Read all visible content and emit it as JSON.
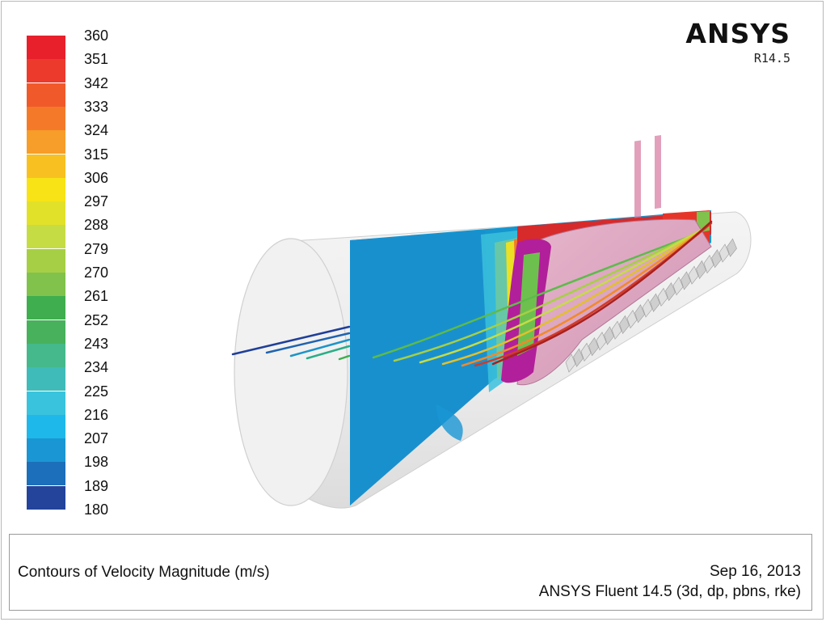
{
  "window": {
    "brand": "ANSYS",
    "version": "R14.5"
  },
  "legend": {
    "ticks": [
      "360",
      "351",
      "342",
      "333",
      "324",
      "315",
      "306",
      "297",
      "288",
      "279",
      "270",
      "261",
      "252",
      "243",
      "234",
      "225",
      "216",
      "207",
      "198",
      "189",
      "180"
    ],
    "colors": [
      "#e8202b",
      "#ec3a2c",
      "#f05a2a",
      "#f47a2a",
      "#f79d2a",
      "#f9c022",
      "#f7e316",
      "#e2e12a",
      "#c6dc45",
      "#a6cf45",
      "#80c24c",
      "#3fae4e",
      "#47b15c",
      "#45b98c",
      "#3fbcb9",
      "#3ac3dd",
      "#1fb8ea",
      "#1a96d4",
      "#1c6fba",
      "#24449c"
    ]
  },
  "footer": {
    "caption": "Contours of Velocity Magnitude (m/s)",
    "date": "Sep 16, 2013",
    "solver": "ANSYS Fluent 14.5 (3d, dp, pbns, rke)"
  }
}
